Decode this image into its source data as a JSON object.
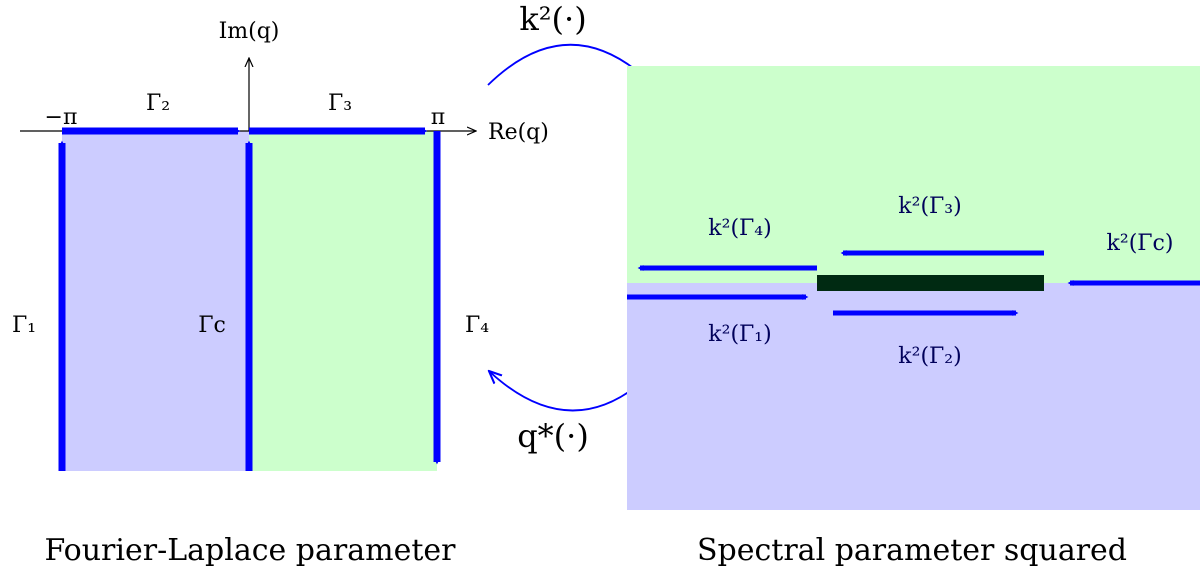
{
  "left_panel": {
    "caption": "Fourier-Laplace parameter",
    "axis_labels": {
      "imaginary": "Im(q)",
      "real": "Re(q)"
    },
    "ticks": {
      "minus_pi": "−π",
      "pi": "π"
    },
    "contours": {
      "gamma1": "Γ₁",
      "gamma2": "Γ₂",
      "gamma3": "Γ₃",
      "gamma4": "Γ₄",
      "gamma_c": "Γc"
    }
  },
  "right_panel": {
    "caption": "Spectral parameter squared",
    "images": {
      "k_gamma1": "k²(Γ₁)",
      "k_gamma2": "k²(Γ₂)",
      "k_gamma3": "k²(Γ₃)",
      "k_gamma4": "k²(Γ₄)",
      "k_gamma_c": "k²(Γc)"
    }
  },
  "maps": {
    "forward": "k²(·)",
    "inverse": "q*(·)"
  },
  "colors": {
    "upper_region": "#ccffcc",
    "lower_region": "#ccccff",
    "contour": "#0000ff",
    "spectral_label": "#00005a",
    "band": "#002a12"
  }
}
